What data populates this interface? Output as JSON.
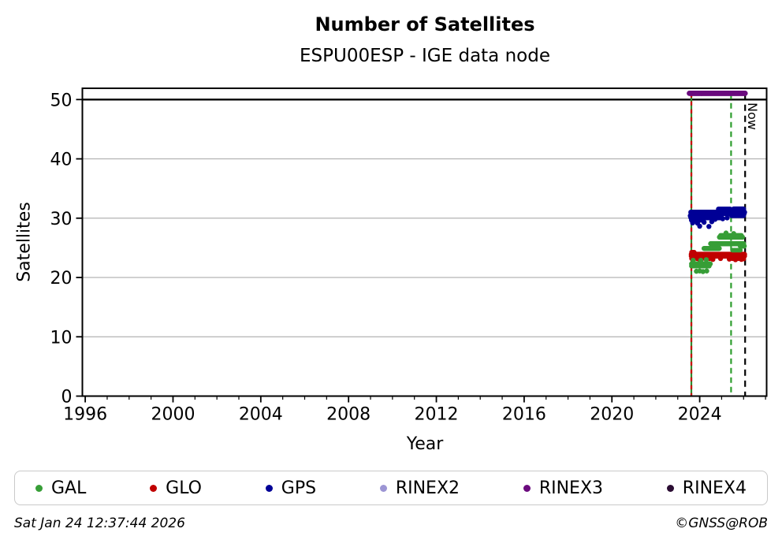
{
  "chart_data": {
    "type": "scatter",
    "title": "Number of Satellites",
    "subtitle": "ESPU00ESP - IGE data node",
    "xlabel": "Year",
    "ylabel": "Satellites",
    "xlim": [
      1995.87,
      2027.05
    ],
    "ylim": [
      0,
      51.9
    ],
    "xticks": [
      1996,
      2000,
      2004,
      2008,
      2012,
      2016,
      2020,
      2024
    ],
    "xminor_step": 1,
    "yticks": [
      0,
      10,
      20,
      30,
      40,
      50
    ],
    "grid": "horizontal-only",
    "legend_position": "bottom",
    "colors": {
      "background": "#ffffff",
      "grid": "#b3b3b3",
      "spine": "#000000"
    },
    "hlines": [
      {
        "y": 50,
        "color": "#000000",
        "width": 2.4
      }
    ],
    "vlines": [
      {
        "x": 2023.62,
        "color": "#2e8b2e",
        "dash": "",
        "width": 2.2,
        "label": ""
      },
      {
        "x": 2023.62,
        "color": "#cc0000",
        "dash": "5,5",
        "width": 2.2,
        "label": ""
      },
      {
        "x": 2025.43,
        "color": "#2e9e2e",
        "dash": "7,5",
        "width": 2.2,
        "label": ""
      },
      {
        "x": 2026.07,
        "color": "#000000",
        "dash": "8,6",
        "width": 2.2,
        "label": "Now"
      }
    ],
    "series": [
      {
        "name": "GAL",
        "color": "#379e37",
        "z": 2,
        "runs": [
          {
            "x0": 2023.63,
            "x1": 2024.5,
            "y": 22.3,
            "r": 3.2,
            "step": 0.025
          },
          {
            "x0": 2023.63,
            "x1": 2024.45,
            "y": 21.95,
            "r": 3.2,
            "step": 0.025
          },
          {
            "x0": 2024.2,
            "x1": 2024.9,
            "y": 24.9,
            "r": 3.2,
            "step": 0.03
          },
          {
            "x0": 2024.5,
            "x1": 2026.02,
            "y": 25.7,
            "r": 3.2,
            "step": 0.03
          },
          {
            "x0": 2024.9,
            "x1": 2025.95,
            "y": 26.8,
            "r": 3.2,
            "step": 0.03
          },
          {
            "x0": 2024.95,
            "x1": 2025.9,
            "y": 27.1,
            "r": 3.0,
            "step": 0.05
          },
          {
            "x0": 2025.5,
            "x1": 2025.9,
            "y": 24.6,
            "r": 3.0,
            "step": 0.07
          },
          {
            "x0": 2025.85,
            "x1": 2026.05,
            "y": 25.3,
            "r": 3.2,
            "step": 0.03
          }
        ],
        "points": [
          [
            2023.85,
            21.05
          ],
          [
            2024.0,
            21.1
          ],
          [
            2024.15,
            21.0
          ],
          [
            2024.32,
            21.1
          ],
          [
            2023.7,
            22.9
          ],
          [
            2024.05,
            22.9
          ],
          [
            2024.3,
            23.0
          ],
          [
            2025.2,
            27.5
          ],
          [
            2025.55,
            27.4
          ]
        ]
      },
      {
        "name": "GLO",
        "color": "#c00000",
        "z": 1,
        "runs": [
          {
            "x0": 2023.62,
            "x1": 2026.05,
            "y": 23.9,
            "r": 3.3,
            "step": 0.022
          },
          {
            "x0": 2023.62,
            "x1": 2026.05,
            "y": 23.62,
            "r": 3.3,
            "step": 0.022
          },
          {
            "x0": 2023.63,
            "x1": 2023.76,
            "y": 24.25,
            "r": 3.0,
            "step": 0.04
          },
          {
            "x0": 2023.63,
            "x1": 2023.76,
            "y": 23.2,
            "r": 3.0,
            "step": 0.04
          }
        ],
        "points": [
          [
            2023.88,
            23.2
          ],
          [
            2024.0,
            23.0
          ],
          [
            2024.15,
            23.25
          ],
          [
            2024.3,
            23.1
          ],
          [
            2024.45,
            23.2
          ],
          [
            2024.6,
            23.05
          ],
          [
            2024.95,
            23.2
          ],
          [
            2025.35,
            23.1
          ],
          [
            2025.5,
            23.2
          ],
          [
            2025.63,
            23.0
          ],
          [
            2025.76,
            23.2
          ],
          [
            2025.9,
            23.05
          ],
          [
            2026.0,
            23.15
          ]
        ]
      },
      {
        "name": "GPS",
        "color": "#000096",
        "z": 3,
        "runs": [
          {
            "x0": 2023.6,
            "x1": 2026.05,
            "y": 31.0,
            "r": 3.3,
            "step": 0.022
          },
          {
            "x0": 2023.6,
            "x1": 2026.05,
            "y": 30.75,
            "r": 3.0,
            "step": 0.03
          },
          {
            "x0": 2023.6,
            "x1": 2025.0,
            "y": 30.1,
            "r": 3.3,
            "step": 0.025
          },
          {
            "x0": 2023.62,
            "x1": 2024.1,
            "y": 29.65,
            "r": 3.0,
            "step": 0.05
          },
          {
            "x0": 2024.85,
            "x1": 2025.4,
            "y": 31.55,
            "r": 3.0,
            "step": 0.045
          },
          {
            "x0": 2025.55,
            "x1": 2026.0,
            "y": 31.55,
            "r": 3.2,
            "step": 0.03
          },
          {
            "x0": 2025.45,
            "x1": 2026.0,
            "y": 30.4,
            "r": 3.0,
            "step": 0.05
          }
        ],
        "points": [
          [
            2023.57,
            30.4
          ],
          [
            2023.68,
            29.2
          ],
          [
            2023.9,
            29.15
          ],
          [
            2024.0,
            28.65
          ],
          [
            2024.2,
            29.3
          ],
          [
            2024.42,
            28.6
          ],
          [
            2024.55,
            29.4
          ],
          [
            2024.7,
            29.8
          ],
          [
            2025.05,
            29.9
          ],
          [
            2025.25,
            30.05
          ]
        ]
      },
      {
        "name": "RINEX2",
        "color": "#9c95d4",
        "z": 4,
        "runs": [],
        "points": []
      },
      {
        "name": "RINEX3",
        "color": "#6b0b7e",
        "z": 5,
        "runs": [
          {
            "x0": 2023.53,
            "x1": 2026.07,
            "y": 51.05,
            "r": 3.4,
            "step": 0.02
          }
        ],
        "points": []
      },
      {
        "name": "RINEX4",
        "color": "#2b0d33",
        "z": 6,
        "runs": [],
        "points": []
      }
    ]
  },
  "footer": {
    "timestamp": "Sat Jan 24 12:37:44 2026",
    "copyright": "©GNSS@ROB"
  }
}
